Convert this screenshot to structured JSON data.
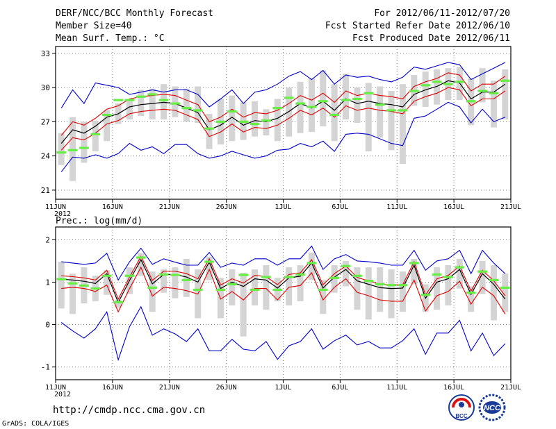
{
  "header": {
    "title": "DERF/NCC/BCC Monthly Forecast",
    "member_size": "Member Size=40",
    "variable": "Mean Surf. Temp.: °C",
    "period": "For 2012/06/11-2012/07/20",
    "started": "Fcst Started Refer Date 2012/06/10",
    "produced": "Fcst Produced Date 2012/06/11"
  },
  "footer": {
    "url": "http://cmdp.ncc.cma.gov.cn",
    "grads": "GrADS: COLA/IGES",
    "logo_bcc": "BCC",
    "logo_ncc": "NCC"
  },
  "colors": {
    "box": "#d4d4d4",
    "median": "#66ee44",
    "mean": "#000000",
    "sd": "#dd0000",
    "range": "#0000cc"
  },
  "chart_data": [
    {
      "type": "line",
      "title": "Mean Surf. Temp.: °C",
      "xlabel": "",
      "ylabel": "°C",
      "ylim": [
        20.2,
        33.6
      ],
      "yticks": [
        21,
        24,
        27,
        30,
        33
      ],
      "xticks": [
        "11JUN",
        "16JUN",
        "21JUN",
        "26JUN",
        "1JUL",
        "6JUL",
        "11JUL",
        "16JUL",
        "21JUL"
      ],
      "year_label": "2012",
      "grid": true,
      "days": 40,
      "series": [
        {
          "name": "ensemble mean",
          "values": [
            25.1,
            26.3,
            26.0,
            26.6,
            27.4,
            27.7,
            28.3,
            28.5,
            28.6,
            28.7,
            28.6,
            28.2,
            27.8,
            26.3,
            26.7,
            27.4,
            26.7,
            27.1,
            27.0,
            27.3,
            27.9,
            28.6,
            28.2,
            28.8,
            28.0,
            29.0,
            28.6,
            28.8,
            28.6,
            28.5,
            28.3,
            29.4,
            29.8,
            30.1,
            30.6,
            30.4,
            29.0,
            29.6,
            29.6,
            30.3
          ]
        },
        {
          "name": "mean + std",
          "values": [
            25.8,
            27.0,
            26.7,
            27.3,
            28.1,
            28.4,
            29.0,
            29.2,
            29.3,
            29.4,
            29.3,
            28.9,
            28.5,
            27.0,
            27.4,
            28.1,
            27.4,
            27.8,
            27.7,
            28.0,
            28.6,
            29.3,
            28.9,
            29.5,
            28.7,
            29.7,
            29.3,
            29.5,
            29.3,
            29.2,
            29.0,
            30.1,
            30.5,
            30.8,
            31.3,
            31.1,
            29.7,
            30.3,
            30.3,
            31.0
          ]
        },
        {
          "name": "mean - std",
          "values": [
            24.5,
            25.6,
            25.4,
            26.0,
            26.8,
            27.1,
            27.7,
            27.9,
            28.0,
            28.1,
            28.0,
            27.6,
            27.2,
            25.7,
            26.1,
            26.8,
            26.1,
            26.5,
            26.4,
            26.7,
            27.3,
            28.0,
            27.6,
            28.2,
            27.4,
            28.4,
            28.0,
            28.2,
            28.0,
            27.9,
            27.7,
            28.8,
            29.2,
            29.5,
            30.0,
            29.8,
            28.4,
            29.0,
            29.0,
            29.7
          ]
        },
        {
          "name": "ensemble max",
          "values": [
            28.2,
            29.8,
            28.6,
            30.4,
            30.2,
            30.0,
            29.4,
            29.6,
            29.8,
            29.6,
            29.8,
            29.8,
            29.4,
            28.3,
            29.0,
            29.8,
            28.6,
            29.6,
            29.8,
            30.3,
            31.0,
            31.4,
            30.7,
            31.5,
            30.3,
            31.1,
            30.9,
            31.0,
            30.7,
            30.5,
            30.9,
            31.8,
            31.6,
            31.9,
            32.2,
            32.0,
            30.7,
            31.2,
            31.7,
            32.2
          ]
        },
        {
          "name": "ensemble min",
          "values": [
            22.6,
            23.9,
            23.8,
            24.1,
            23.8,
            24.2,
            25.1,
            24.5,
            24.8,
            24.2,
            25.0,
            25.0,
            24.2,
            23.8,
            24.0,
            24.4,
            24.1,
            23.8,
            24.0,
            24.5,
            24.6,
            25.1,
            24.8,
            25.3,
            24.4,
            25.9,
            26.0,
            25.9,
            25.5,
            25.1,
            24.9,
            27.3,
            27.5,
            28.1,
            28.7,
            28.3,
            26.9,
            28.1,
            27.0,
            27.4
          ]
        },
        {
          "name": "ensemble median",
          "values": [
            24.3,
            24.5,
            24.7,
            25.9,
            27.6,
            28.9,
            28.9,
            29.2,
            29.4,
            28.9,
            28.6,
            28.2,
            28.0,
            26.4,
            27.0,
            27.9,
            27.0,
            26.8,
            27.1,
            28.2,
            29.1,
            28.6,
            28.3,
            28.8,
            27.6,
            28.9,
            29.0,
            29.5,
            28.5,
            28.0,
            28.0,
            29.7,
            30.2,
            30.5,
            30.3,
            30.5,
            28.8,
            29.7,
            29.5,
            30.6
          ]
        }
      ],
      "boxes": {
        "low": [
          23.2,
          21.8,
          23.4,
          24.4,
          25.3,
          26.8,
          27.2,
          27.5,
          27.2,
          27.2,
          27.4,
          27.0,
          26.9,
          24.6,
          25.0,
          25.3,
          25.4,
          25.7,
          25.8,
          25.3,
          25.7,
          26.0,
          26.1,
          26.6,
          25.3,
          27.2,
          26.9,
          24.4,
          25.6,
          24.5,
          23.3,
          28.4,
          28.3,
          28.5,
          28.9,
          28.9,
          26.7,
          28.7,
          26.5,
          27.2
        ],
        "high": [
          26.0,
          27.4,
          27.0,
          27.1,
          28.0,
          28.6,
          29.0,
          29.8,
          29.9,
          30.3,
          30.1,
          29.9,
          30.1,
          27.7,
          29.0,
          29.3,
          28.7,
          28.8,
          28.1,
          29.0,
          30.0,
          30.5,
          30.8,
          31.5,
          30.3,
          31.2,
          30.0,
          30.4,
          30.1,
          29.7,
          30.3,
          31.1,
          31.4,
          31.6,
          31.7,
          31.8,
          30.8,
          31.7,
          30.6,
          31.6
        ]
      }
    },
    {
      "type": "line",
      "title": "Prec.: log(mm/d)",
      "xlabel": "",
      "ylabel": "log(mm/d)",
      "ylim": [
        -1.3,
        2.3
      ],
      "yticks": [
        -1,
        0,
        1,
        2
      ],
      "xticks": [
        "11JUN",
        "16JUN",
        "21JUN",
        "26JUN",
        "1JUL",
        "6JUL",
        "11JUL",
        "16JUL",
        "21JUL"
      ],
      "year_label": "2012",
      "grid": true,
      "days": 40,
      "series": [
        {
          "name": "ensemble mean",
          "values": [
            1.07,
            1.05,
            1.02,
            0.97,
            1.2,
            0.52,
            1.04,
            1.53,
            0.96,
            1.18,
            1.18,
            1.12,
            1.0,
            1.47,
            0.85,
            1.0,
            0.9,
            1.08,
            1.05,
            0.86,
            1.1,
            1.14,
            1.45,
            0.86,
            1.12,
            1.3,
            1.03,
            0.95,
            0.87,
            0.85,
            0.86,
            1.4,
            0.62,
            1.0,
            1.08,
            1.3,
            0.71,
            1.2,
            0.95,
            0.6
          ]
        },
        {
          "name": "mean + std",
          "values": [
            1.15,
            1.13,
            1.1,
            1.05,
            1.28,
            0.6,
            1.12,
            1.61,
            1.04,
            1.26,
            1.26,
            1.2,
            1.08,
            1.55,
            0.93,
            1.08,
            0.98,
            1.16,
            1.13,
            0.94,
            1.18,
            1.22,
            1.53,
            0.94,
            1.2,
            1.38,
            1.11,
            1.03,
            0.95,
            0.93,
            0.94,
            1.48,
            0.7,
            1.08,
            1.16,
            1.38,
            0.79,
            1.28,
            1.03,
            0.68
          ]
        },
        {
          "name": "mean - std",
          "values": [
            0.85,
            0.88,
            0.85,
            0.78,
            0.93,
            0.3,
            0.85,
            1.35,
            0.67,
            0.88,
            0.85,
            0.8,
            0.72,
            1.3,
            0.6,
            0.78,
            0.58,
            0.85,
            0.85,
            0.58,
            0.88,
            0.92,
            1.22,
            0.58,
            0.88,
            1.08,
            0.76,
            0.68,
            0.58,
            0.55,
            0.55,
            1.05,
            0.32,
            0.68,
            0.78,
            1.02,
            0.48,
            0.88,
            0.68,
            0.25
          ]
        },
        {
          "name": "ensemble max",
          "values": [
            1.48,
            1.45,
            1.42,
            1.45,
            1.68,
            1.05,
            1.48,
            1.8,
            1.42,
            1.55,
            1.47,
            1.4,
            1.4,
            1.7,
            1.35,
            1.45,
            1.4,
            1.55,
            1.55,
            1.4,
            1.55,
            1.55,
            1.85,
            1.3,
            1.55,
            1.65,
            1.5,
            1.48,
            1.45,
            1.4,
            1.4,
            1.75,
            1.28,
            1.5,
            1.55,
            1.75,
            1.2,
            1.75,
            1.45,
            1.2
          ]
        },
        {
          "name": "ensemble min",
          "values": [
            0.05,
            -0.15,
            -0.32,
            -0.1,
            0.3,
            -0.83,
            -0.05,
            0.42,
            -0.25,
            -0.1,
            -0.22,
            -0.4,
            -0.1,
            -0.62,
            -0.62,
            -0.35,
            -0.58,
            -0.62,
            -0.4,
            -0.82,
            -0.5,
            -0.4,
            -0.1,
            -0.58,
            -0.38,
            -0.25,
            -0.48,
            -0.4,
            -0.55,
            -0.55,
            -0.38,
            -0.1,
            -0.7,
            -0.2,
            -0.2,
            0.1,
            -0.62,
            -0.2,
            -0.73,
            -0.45
          ]
        },
        {
          "name": "ensemble median",
          "values": [
            1.07,
            0.97,
            0.92,
            0.85,
            1.15,
            0.53,
            1.15,
            1.58,
            0.87,
            1.18,
            1.17,
            1.05,
            0.82,
            1.48,
            0.82,
            0.95,
            1.17,
            0.82,
            1.12,
            0.82,
            1.12,
            1.18,
            1.45,
            0.82,
            1.1,
            1.38,
            1.15,
            1.03,
            0.95,
            0.93,
            0.93,
            1.45,
            0.7,
            1.18,
            1.12,
            1.35,
            0.75,
            1.25,
            1.05,
            0.87
          ]
        }
      ],
      "boxes": {
        "low": [
          0.38,
          0.25,
          0.5,
          0.55,
          0.7,
          0.4,
          0.72,
          1.15,
          0.3,
          0.75,
          0.62,
          0.65,
          0.15,
          1.05,
          0.15,
          0.45,
          -0.28,
          0.45,
          0.35,
          0.55,
          0.45,
          0.55,
          1.05,
          0.25,
          0.75,
          0.9,
          0.35,
          0.12,
          0.3,
          0.15,
          0.3,
          0.95,
          0.3,
          0.35,
          0.45,
          0.85,
          0.3,
          0.72,
          0.1,
          0.3
        ],
        "high": [
          1.48,
          1.2,
          1.35,
          1.15,
          1.28,
          0.58,
          1.35,
          1.68,
          1.25,
          1.3,
          1.35,
          1.55,
          1.3,
          1.6,
          1.1,
          1.3,
          1.22,
          1.3,
          1.4,
          1.1,
          1.35,
          1.4,
          1.7,
          1.05,
          1.4,
          1.5,
          1.35,
          1.35,
          1.35,
          1.3,
          1.25,
          1.55,
          0.95,
          1.35,
          1.4,
          1.55,
          0.9,
          1.5,
          1.4,
          1.2
        ]
      }
    }
  ]
}
